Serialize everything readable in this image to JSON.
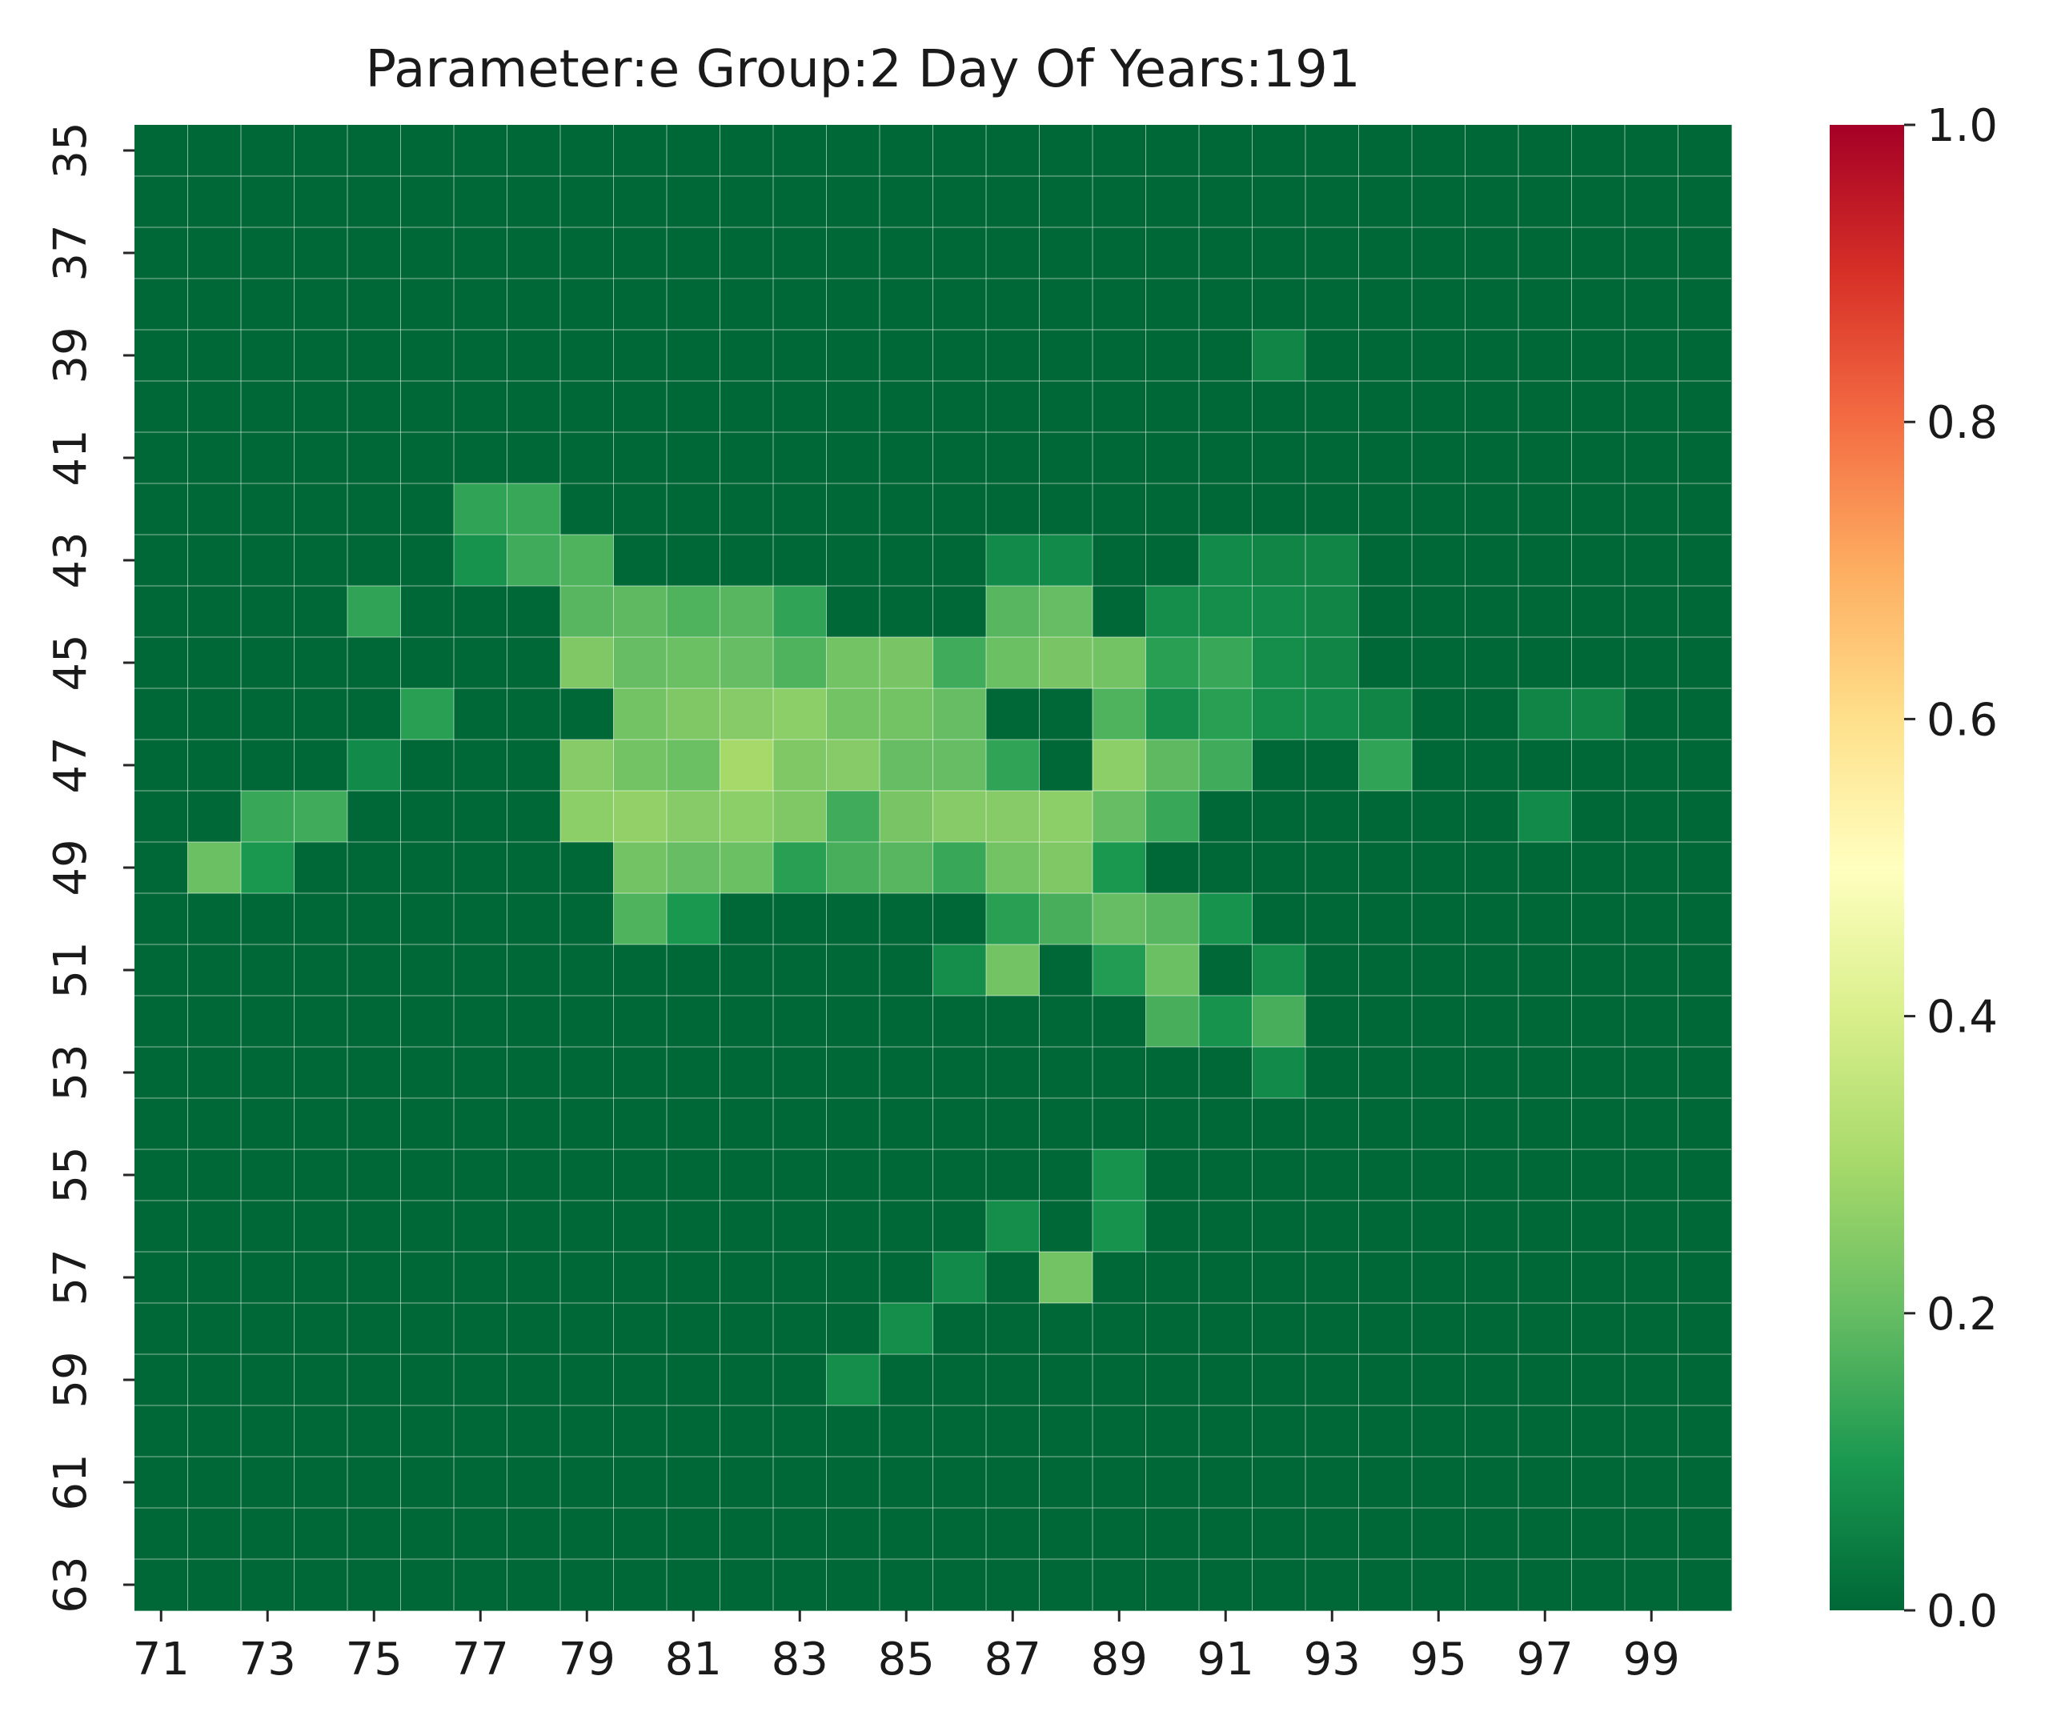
{
  "chart_data": {
    "type": "heatmap",
    "title": "Parameter:e Group:2 Day Of Years:191",
    "xlabel": "",
    "ylabel": "",
    "x_categories": [
      "71",
      "72",
      "73",
      "74",
      "75",
      "76",
      "77",
      "78",
      "79",
      "80",
      "81",
      "82",
      "83",
      "84",
      "85",
      "86",
      "87",
      "88",
      "89",
      "90",
      "91",
      "92",
      "93",
      "94",
      "95",
      "96",
      "97",
      "98",
      "99",
      "100"
    ],
    "y_categories": [
      "35",
      "36",
      "37",
      "38",
      "39",
      "40",
      "41",
      "42",
      "43",
      "44",
      "45",
      "46",
      "47",
      "48",
      "49",
      "50",
      "51",
      "52",
      "53",
      "54",
      "55",
      "56",
      "57",
      "58",
      "59",
      "60",
      "61",
      "62",
      "63"
    ],
    "x_tick_labels": [
      "71",
      "73",
      "75",
      "77",
      "79",
      "81",
      "83",
      "85",
      "87",
      "89",
      "91",
      "93",
      "95",
      "97",
      "99"
    ],
    "y_tick_labels": [
      "35",
      "37",
      "39",
      "41",
      "43",
      "45",
      "47",
      "49",
      "51",
      "53",
      "55",
      "57",
      "59",
      "61",
      "63"
    ],
    "colormap": "RdYlGn_r",
    "colormap_stops": [
      "#006837",
      "#1a9850",
      "#66bd63",
      "#a6d96a",
      "#d9ef8b",
      "#ffffbf",
      "#fee08b",
      "#fdae61",
      "#f46d43",
      "#d73027",
      "#a50026"
    ],
    "vmin": 0.0,
    "vmax": 1.0,
    "colorbar_ticks": [
      "0.0",
      "0.2",
      "0.4",
      "0.6",
      "0.8",
      "1.0"
    ],
    "grid_lines": true,
    "values": [
      [
        0,
        0,
        0,
        0,
        0,
        0,
        0,
        0,
        0,
        0,
        0,
        0,
        0,
        0,
        0,
        0,
        0,
        0,
        0,
        0,
        0,
        0,
        0,
        0,
        0,
        0,
        0,
        0,
        0,
        0
      ],
      [
        0,
        0,
        0,
        0,
        0,
        0,
        0,
        0,
        0,
        0,
        0,
        0,
        0,
        0,
        0,
        0,
        0,
        0,
        0,
        0,
        0,
        0,
        0,
        0,
        0,
        0,
        0,
        0,
        0,
        0
      ],
      [
        0,
        0,
        0,
        0,
        0,
        0,
        0,
        0,
        0,
        0,
        0,
        0,
        0,
        0,
        0,
        0,
        0,
        0,
        0,
        0,
        0,
        0,
        0,
        0,
        0,
        0,
        0,
        0,
        0,
        0
      ],
      [
        0,
        0,
        0,
        0,
        0,
        0,
        0,
        0,
        0,
        0,
        0,
        0,
        0,
        0,
        0,
        0,
        0,
        0,
        0,
        0,
        0,
        0,
        0,
        0,
        0,
        0,
        0,
        0,
        0,
        0
      ],
      [
        0,
        0,
        0,
        0,
        0,
        0,
        0,
        0,
        0,
        0,
        0,
        0,
        0,
        0,
        0,
        0,
        0,
        0,
        0,
        0,
        0,
        0.06,
        0,
        0,
        0,
        0,
        0,
        0,
        0,
        0
      ],
      [
        0,
        0,
        0,
        0,
        0,
        0,
        0,
        0,
        0,
        0,
        0,
        0,
        0,
        0,
        0,
        0,
        0,
        0,
        0,
        0,
        0,
        0,
        0,
        0,
        0,
        0,
        0,
        0,
        0,
        0
      ],
      [
        0,
        0,
        0,
        0,
        0,
        0,
        0,
        0,
        0,
        0,
        0,
        0,
        0,
        0,
        0,
        0,
        0,
        0,
        0,
        0,
        0,
        0,
        0,
        0,
        0,
        0,
        0,
        0,
        0,
        0
      ],
      [
        0,
        0,
        0,
        0,
        0,
        0,
        0.13,
        0.14,
        0,
        0,
        0,
        0,
        0,
        0,
        0,
        0,
        0,
        0,
        0,
        0,
        0,
        0,
        0,
        0,
        0,
        0,
        0,
        0,
        0,
        0
      ],
      [
        0,
        0,
        0,
        0,
        0,
        0,
        0.09,
        0.15,
        0.17,
        0,
        0,
        0,
        0,
        0,
        0,
        0,
        0.07,
        0.07,
        0,
        0,
        0.07,
        0.06,
        0.06,
        0,
        0,
        0,
        0,
        0,
        0,
        0
      ],
      [
        0,
        0,
        0,
        0,
        0.13,
        0,
        0,
        0,
        0.18,
        0.19,
        0.17,
        0.18,
        0.13,
        0,
        0,
        0,
        0.18,
        0.2,
        0,
        0.08,
        0.08,
        0.07,
        0.06,
        0,
        0,
        0,
        0,
        0,
        0,
        0
      ],
      [
        0,
        0,
        0,
        0,
        0,
        0,
        0,
        0,
        0.24,
        0.2,
        0.21,
        0.2,
        0.17,
        0.22,
        0.23,
        0.15,
        0.21,
        0.23,
        0.22,
        0.12,
        0.14,
        0.08,
        0.06,
        0,
        0,
        0,
        0,
        0,
        0,
        0
      ],
      [
        0,
        0,
        0,
        0,
        0,
        0.12,
        0,
        0,
        0,
        0.22,
        0.24,
        0.25,
        0.26,
        0.22,
        0.22,
        0.2,
        0,
        0,
        0.17,
        0.08,
        0.12,
        0.08,
        0.07,
        0.06,
        0,
        0,
        0.06,
        0.06,
        0,
        0
      ],
      [
        0,
        0,
        0,
        0,
        0.07,
        0,
        0,
        0,
        0.25,
        0.22,
        0.21,
        0.3,
        0.24,
        0.25,
        0.2,
        0.2,
        0.13,
        0,
        0.26,
        0.19,
        0.15,
        0,
        0,
        0.13,
        0,
        0,
        0,
        0,
        0,
        0
      ],
      [
        0,
        0,
        0.14,
        0.15,
        0,
        0,
        0,
        0,
        0.26,
        0.27,
        0.25,
        0.26,
        0.24,
        0.15,
        0.23,
        0.25,
        0.25,
        0.26,
        0.2,
        0.14,
        0,
        0,
        0,
        0,
        0,
        0,
        0.07,
        0,
        0,
        0
      ],
      [
        0,
        0.21,
        0.1,
        0,
        0,
        0,
        0,
        0,
        0,
        0.22,
        0.2,
        0.21,
        0.12,
        0.16,
        0.18,
        0.14,
        0.22,
        0.24,
        0.1,
        0,
        0,
        0,
        0,
        0,
        0,
        0,
        0,
        0,
        0,
        0
      ],
      [
        0,
        0,
        0,
        0,
        0,
        0,
        0,
        0,
        0,
        0.17,
        0.1,
        0,
        0,
        0,
        0,
        0,
        0.12,
        0.16,
        0.2,
        0.18,
        0.09,
        0,
        0,
        0,
        0,
        0,
        0,
        0,
        0,
        0
      ],
      [
        0,
        0,
        0,
        0,
        0,
        0,
        0,
        0,
        0,
        0,
        0,
        0,
        0,
        0,
        0,
        0.08,
        0.22,
        0,
        0.11,
        0.21,
        0,
        0.08,
        0,
        0,
        0,
        0,
        0,
        0,
        0,
        0
      ],
      [
        0,
        0,
        0,
        0,
        0,
        0,
        0,
        0,
        0,
        0,
        0,
        0,
        0,
        0,
        0,
        0,
        0,
        0,
        0,
        0.16,
        0.09,
        0.16,
        0,
        0,
        0,
        0,
        0,
        0,
        0,
        0
      ],
      [
        0,
        0,
        0,
        0,
        0,
        0,
        0,
        0,
        0,
        0,
        0,
        0,
        0,
        0,
        0,
        0,
        0,
        0,
        0,
        0,
        0,
        0.07,
        0,
        0,
        0,
        0,
        0,
        0,
        0,
        0
      ],
      [
        0,
        0,
        0,
        0,
        0,
        0,
        0,
        0,
        0,
        0,
        0,
        0,
        0,
        0,
        0,
        0,
        0,
        0,
        0,
        0,
        0,
        0,
        0,
        0,
        0,
        0,
        0,
        0,
        0,
        0
      ],
      [
        0,
        0,
        0,
        0,
        0,
        0,
        0,
        0,
        0,
        0,
        0,
        0,
        0,
        0,
        0,
        0,
        0,
        0,
        0.09,
        0,
        0,
        0,
        0,
        0,
        0,
        0,
        0,
        0,
        0,
        0
      ],
      [
        0,
        0,
        0,
        0,
        0,
        0,
        0,
        0,
        0,
        0,
        0,
        0,
        0,
        0,
        0,
        0,
        0.08,
        0,
        0.09,
        0,
        0,
        0,
        0,
        0,
        0,
        0,
        0,
        0,
        0,
        0
      ],
      [
        0,
        0,
        0,
        0,
        0,
        0,
        0,
        0,
        0,
        0,
        0,
        0,
        0,
        0,
        0,
        0.07,
        0,
        0.22,
        0,
        0,
        0,
        0,
        0,
        0,
        0,
        0,
        0,
        0,
        0,
        0
      ],
      [
        0,
        0,
        0,
        0,
        0,
        0,
        0,
        0,
        0,
        0,
        0,
        0,
        0,
        0,
        0.08,
        0,
        0,
        0,
        0,
        0,
        0,
        0,
        0,
        0,
        0,
        0,
        0,
        0,
        0,
        0
      ],
      [
        0,
        0,
        0,
        0,
        0,
        0,
        0,
        0,
        0,
        0,
        0,
        0,
        0,
        0.08,
        0,
        0,
        0,
        0,
        0,
        0,
        0,
        0,
        0,
        0,
        0,
        0,
        0,
        0,
        0,
        0
      ],
      [
        0,
        0,
        0,
        0,
        0,
        0,
        0,
        0,
        0,
        0,
        0,
        0,
        0,
        0,
        0,
        0,
        0,
        0,
        0,
        0,
        0,
        0,
        0,
        0,
        0,
        0,
        0,
        0,
        0,
        0
      ],
      [
        0,
        0,
        0,
        0,
        0,
        0,
        0,
        0,
        0,
        0,
        0,
        0,
        0,
        0,
        0,
        0,
        0,
        0,
        0,
        0,
        0,
        0,
        0,
        0,
        0,
        0,
        0,
        0,
        0,
        0
      ],
      [
        0,
        0,
        0,
        0,
        0,
        0,
        0,
        0,
        0,
        0,
        0,
        0,
        0,
        0,
        0,
        0,
        0,
        0,
        0,
        0,
        0,
        0,
        0,
        0,
        0,
        0,
        0,
        0,
        0,
        0
      ],
      [
        0,
        0,
        0,
        0,
        0,
        0,
        0,
        0,
        0,
        0,
        0,
        0,
        0,
        0,
        0,
        0,
        0,
        0,
        0,
        0,
        0,
        0,
        0,
        0,
        0,
        0,
        0,
        0,
        0,
        0
      ]
    ]
  }
}
